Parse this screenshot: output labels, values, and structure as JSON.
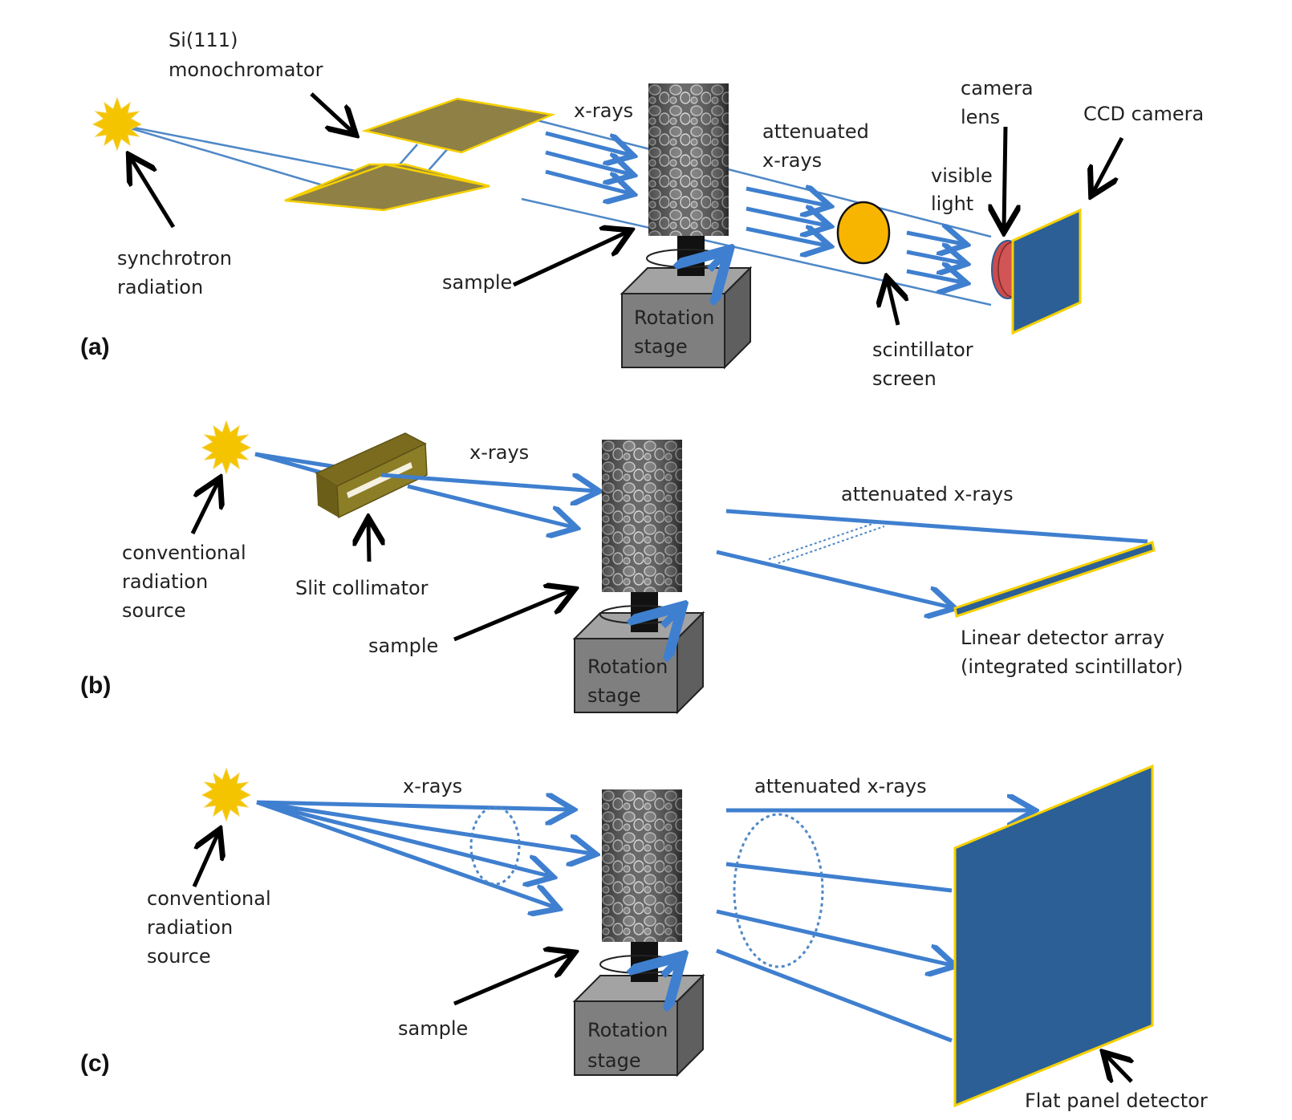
{
  "colors": {
    "beam": "#4f88c6",
    "ray": "#3f7fcf",
    "source": "#f5c400",
    "crystal": "#8f8045",
    "detector": "#2b5f96",
    "stage": "#7f7f7f",
    "outline": "#f5d000"
  },
  "panels": {
    "a": {
      "tag": "(a)",
      "mono_1": "Si(111)",
      "mono_2": "monochromator",
      "xrays": "x-rays",
      "att_1": "attenuated",
      "att_2": "x-rays",
      "lens_1": "camera",
      "lens_2": "lens",
      "ccd": "CCD camera",
      "vis_1": "visible",
      "vis_2": "light",
      "sync_1": "synchrotron",
      "sync_2": "radiation",
      "sample": "sample",
      "stage_1": "Rotation",
      "stage_2": "stage",
      "scint_1": "scintillator",
      "scint_2": "screen"
    },
    "b": {
      "tag": "(b)",
      "xrays": "x-rays",
      "att": "attenuated x-rays",
      "src_1": "conventional",
      "src_2": "radiation",
      "src_3": "source",
      "slit": "Slit collimator",
      "sample": "sample",
      "stage_1": "Rotation",
      "stage_2": "stage",
      "det_1": "Linear detector array",
      "det_2": "(integrated scintillator)"
    },
    "c": {
      "tag": "(c)",
      "xrays": "x-rays",
      "att": "attenuated x-rays",
      "src_1": "conventional",
      "src_2": "radiation",
      "src_3": "source",
      "sample": "sample",
      "stage_1": "Rotation",
      "stage_2": "stage",
      "det": "Flat panel detector"
    }
  }
}
